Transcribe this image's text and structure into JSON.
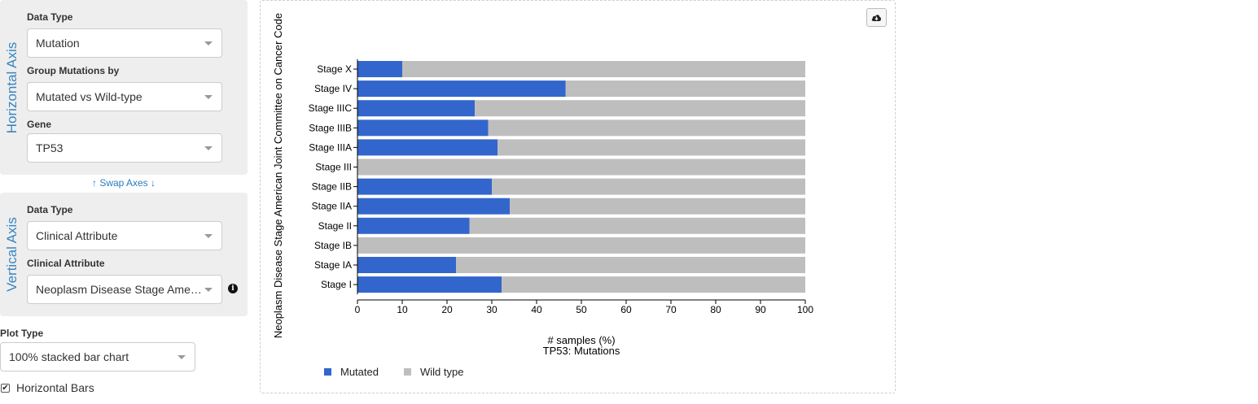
{
  "horizontal_axis": {
    "title": "Horizontal Axis",
    "data_type_label": "Data Type",
    "data_type_value": "Mutation",
    "group_label": "Group Mutations by",
    "group_value": "Mutated vs Wild-type",
    "gene_label": "Gene",
    "gene_value": "TP53"
  },
  "swap_axes": {
    "label": "Swap Axes",
    "up_icon": "↑",
    "down_icon": "↓"
  },
  "vertical_axis": {
    "title": "Vertical Axis",
    "data_type_label": "Data Type",
    "data_type_value": "Clinical Attribute",
    "attribute_label": "Clinical Attribute",
    "attribute_value": "Neoplasm Disease Stage American Joint Committee on Cancer Code",
    "info_icon": "i"
  },
  "plot_type": {
    "label": "Plot Type",
    "value": "100% stacked bar chart"
  },
  "horizontal_bars": {
    "label": "Horizontal Bars",
    "checked": true,
    "check_glyph": "✔"
  },
  "chart_data": {
    "type": "bar",
    "orientation": "horizontal",
    "stacked": "100%",
    "categories": [
      "Stage X",
      "Stage IV",
      "Stage IIIC",
      "Stage IIIB",
      "Stage IIIA",
      "Stage III",
      "Stage IIB",
      "Stage IIA",
      "Stage II",
      "Stage IB",
      "Stage IA",
      "Stage I"
    ],
    "series": [
      {
        "name": "Mutated",
        "color": "#3366cc",
        "values": [
          10,
          46.5,
          26.2,
          29.2,
          31.3,
          0,
          30,
          34,
          25,
          0,
          22,
          32.2
        ]
      },
      {
        "name": "Wild type",
        "color": "#bebebe",
        "values": [
          90,
          53.5,
          73.8,
          70.8,
          68.7,
          100,
          70,
          66,
          75,
          100,
          78,
          67.8
        ]
      }
    ],
    "xlabel": "# samples (%)",
    "xlabel2": "TP53: Mutations",
    "ylabel": "Neoplasm Disease Stage American Joint Committee on Cancer Code",
    "xlim": [
      0,
      100
    ],
    "xticks": [
      "0",
      "10",
      "20",
      "30",
      "40",
      "50",
      "60",
      "70",
      "80",
      "90",
      "100"
    ],
    "grid": false,
    "legend_position": "bottom-left"
  }
}
